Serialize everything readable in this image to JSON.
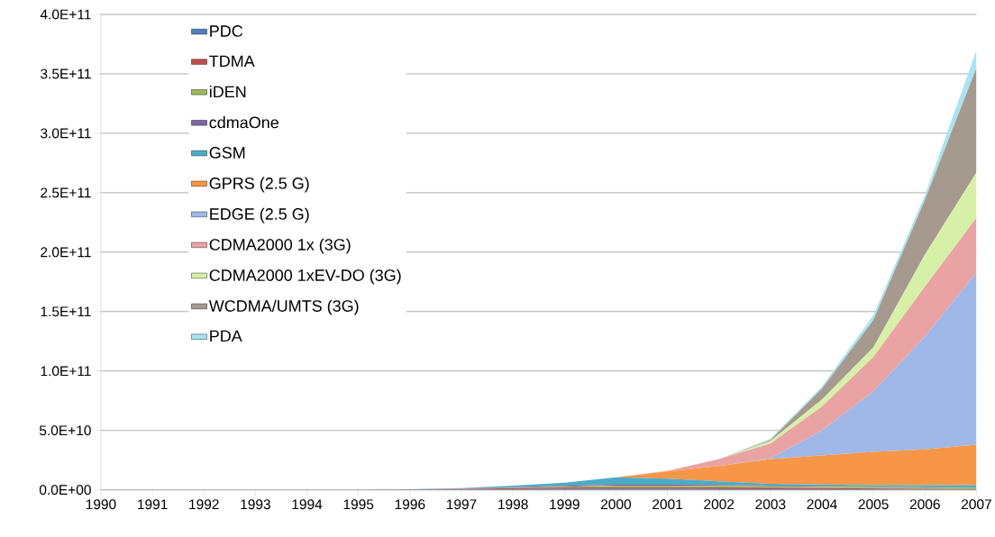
{
  "chart_data": {
    "type": "area",
    "stacked": true,
    "grid": "y",
    "legend": "top left",
    "x": [
      1990,
      1991,
      1992,
      1993,
      1994,
      1995,
      1996,
      1997,
      1998,
      1999,
      2000,
      2001,
      2002,
      2003,
      2004,
      2005,
      2006,
      2007
    ],
    "xlim": [
      1990,
      2007
    ],
    "xticks": [
      1990,
      1991,
      1992,
      1993,
      1994,
      1995,
      1996,
      1997,
      1998,
      1999,
      2000,
      2001,
      2002,
      2003,
      2004,
      2005,
      2006,
      2007
    ],
    "ylim": [
      0,
      400000000000.0
    ],
    "yticks": [
      {
        "value": 0,
        "label": "0.0E+00"
      },
      {
        "value": 50000000000.0,
        "label": "5.0E+10"
      },
      {
        "value": 100000000000.0,
        "label": "1.0E+11"
      },
      {
        "value": 150000000000.0,
        "label": "1.5E+11"
      },
      {
        "value": 200000000000.0,
        "label": "2.0E+11"
      },
      {
        "value": 250000000000.0,
        "label": "2.5E+11"
      },
      {
        "value": 300000000000.0,
        "label": "3.0E+11"
      },
      {
        "value": 350000000000.0,
        "label": "3.5E+11"
      },
      {
        "value": 400000000000.0,
        "label": "4.0E+11"
      }
    ],
    "series": [
      {
        "name": "PDC",
        "color": "#4f81bd",
        "values": [
          0,
          0,
          0,
          0,
          0,
          0,
          100000000.0,
          300000000.0,
          500000000.0,
          700000000.0,
          800000000.0,
          800000000.0,
          700000000.0,
          600000000.0,
          500000000.0,
          400000000.0,
          300000000.0,
          200000000.0
        ]
      },
      {
        "name": "TDMA",
        "color": "#c0504d",
        "values": [
          0,
          0,
          0,
          0,
          0,
          0,
          200000000.0,
          500000000.0,
          900000000.0,
          1300000000.0,
          1500000000.0,
          1500000000.0,
          1400000000.0,
          1200000000.0,
          1000000000.0,
          800000000.0,
          600000000.0,
          400000000.0
        ]
      },
      {
        "name": "iDEN",
        "color": "#9bbb59",
        "values": [
          0,
          0,
          0,
          0,
          0,
          0,
          0,
          200000000.0,
          400000000.0,
          700000000.0,
          1200000000.0,
          1200000000.0,
          1200000000.0,
          1200000000.0,
          1200000000.0,
          1200000000.0,
          1200000000.0,
          1200000000.0
        ]
      },
      {
        "name": "cdmaOne",
        "color": "#8064a2",
        "values": [
          0,
          0,
          0,
          0,
          0,
          0,
          100000000.0,
          300000000.0,
          500000000.0,
          700000000.0,
          900000000.0,
          900000000.0,
          800000000.0,
          600000000.0,
          500000000.0,
          400000000.0,
          300000000.0,
          200000000.0
        ]
      },
      {
        "name": "GSM",
        "color": "#4bacc6",
        "values": [
          0,
          0,
          0,
          0,
          0,
          0,
          100000000.0,
          200000000.0,
          1200000000.0,
          2600000000.0,
          6100000000.0,
          5100000000.0,
          3100000000.0,
          1400000000.0,
          1300000000.0,
          1200000000.0,
          1600000000.0,
          2000000000.0
        ]
      },
      {
        "name": "GPRS (2.5 G)",
        "color": "#f79646",
        "values": [
          0,
          0,
          0,
          0,
          0,
          0,
          0,
          0,
          0,
          0,
          0,
          6000000000.0,
          12800000000.0,
          21000000000.0,
          24500000000.0,
          28000000000.0,
          30000000000.0,
          34000000000.0
        ]
      },
      {
        "name": "EDGE (2.5 G)",
        "color": "#9fb8e8",
        "values": [
          0,
          0,
          0,
          0,
          0,
          0,
          0,
          0,
          0,
          0,
          0,
          0,
          0,
          500000000.0,
          21000000000.0,
          51000000000.0,
          95000000000.0,
          145000000000.0
        ]
      },
      {
        "name": "CDMA2000 1x (3G)",
        "color": "#eaa3a3",
        "values": [
          0,
          0,
          0,
          0,
          0,
          0,
          0,
          0,
          0,
          0,
          0,
          500000000.0,
          6000000000.0,
          12500000000.0,
          20000000000.0,
          29000000000.0,
          42000000000.0,
          46000000000.0
        ]
      },
      {
        "name": "CDMA2000 1xEV-DO (3G)",
        "color": "#d7f0a8",
        "values": [
          0,
          0,
          0,
          0,
          0,
          0,
          0,
          0,
          0,
          0,
          0,
          0,
          0,
          2000000000.0,
          6000000000.0,
          8000000000.0,
          27000000000.0,
          38000000000.0
        ]
      },
      {
        "name": "WCDMA/UMTS (3G)",
        "color": "#a69a8e",
        "values": [
          0,
          0,
          0,
          0,
          0,
          0,
          0,
          0,
          0,
          0,
          0,
          0,
          0,
          1000000000.0,
          9000000000.0,
          23000000000.0,
          46000000000.0,
          88000000000.0
        ]
      },
      {
        "name": "PDA",
        "color": "#a8e4f2",
        "values": [
          0,
          0,
          0,
          0,
          0,
          0,
          0,
          0,
          0,
          0,
          0,
          0,
          0,
          1000000000.0,
          2000000000.0,
          4000000000.0,
          4000000000.0,
          15000000000.0
        ]
      }
    ]
  }
}
